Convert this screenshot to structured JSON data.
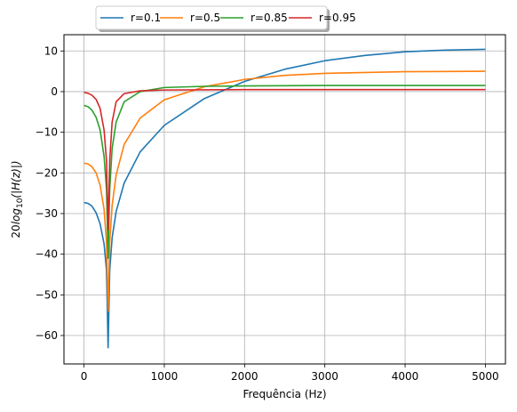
{
  "chart_data": {
    "type": "line",
    "xlabel": "Frequência (Hz)",
    "ylabel_prefix": "20",
    "ylabel_func": "log",
    "ylabel_sub": "10",
    "ylabel_arg": "(|H(z)|)",
    "xlim": [
      -250,
      5250
    ],
    "ylim": [
      -67,
      14
    ],
    "x_ticks": [
      0,
      1000,
      2000,
      3000,
      4000,
      5000
    ],
    "x_tick_labels": [
      "0",
      "1000",
      "2000",
      "3000",
      "4000",
      "5000"
    ],
    "y_ticks": [
      -60,
      -50,
      -40,
      -30,
      -20,
      -10,
      0,
      10
    ],
    "y_tick_labels": [
      "−60",
      "−50",
      "−40",
      "−30",
      "−20",
      "−10",
      "0",
      "10"
    ],
    "grid": true,
    "legend_position": "top-center, above plot",
    "notch_frequency_hz": 300,
    "series": [
      {
        "name": "r=0.1",
        "color": "#1f77b4",
        "points": [
          [
            0,
            -27.3
          ],
          [
            50,
            -27.5
          ],
          [
            100,
            -28.2
          ],
          [
            150,
            -29.8
          ],
          [
            200,
            -32.5
          ],
          [
            250,
            -37.5
          ],
          [
            280,
            -44
          ],
          [
            300,
            -63
          ],
          [
            320,
            -44
          ],
          [
            350,
            -36
          ],
          [
            400,
            -29.5
          ],
          [
            500,
            -22.5
          ],
          [
            700,
            -14.8
          ],
          [
            1000,
            -8.3
          ],
          [
            1500,
            -1.7
          ],
          [
            2000,
            2.5
          ],
          [
            2500,
            5.5
          ],
          [
            3000,
            7.6
          ],
          [
            3500,
            8.9
          ],
          [
            4000,
            9.8
          ],
          [
            4500,
            10.2
          ],
          [
            5000,
            10.4
          ]
        ]
      },
      {
        "name": "r=0.5",
        "color": "#ff7f0e",
        "points": [
          [
            0,
            -17.6
          ],
          [
            50,
            -17.8
          ],
          [
            100,
            -18.5
          ],
          [
            150,
            -20
          ],
          [
            200,
            -23
          ],
          [
            250,
            -29
          ],
          [
            280,
            -37
          ],
          [
            300,
            -54
          ],
          [
            320,
            -37
          ],
          [
            350,
            -28
          ],
          [
            400,
            -20.5
          ],
          [
            500,
            -13
          ],
          [
            700,
            -6.5
          ],
          [
            1000,
            -2
          ],
          [
            1500,
            1.2
          ],
          [
            2000,
            3
          ],
          [
            2500,
            4
          ],
          [
            3000,
            4.5
          ],
          [
            4000,
            4.9
          ],
          [
            5000,
            5.0
          ]
        ]
      },
      {
        "name": "r=0.85",
        "color": "#2ca02c",
        "points": [
          [
            0,
            -3.4
          ],
          [
            50,
            -3.7
          ],
          [
            100,
            -4.6
          ],
          [
            150,
            -6.3
          ],
          [
            200,
            -9.4
          ],
          [
            250,
            -16
          ],
          [
            280,
            -24
          ],
          [
            300,
            -41
          ],
          [
            320,
            -24
          ],
          [
            350,
            -14
          ],
          [
            400,
            -7.5
          ],
          [
            500,
            -2.5
          ],
          [
            700,
            0
          ],
          [
            1000,
            1
          ],
          [
            1500,
            1.3
          ],
          [
            2000,
            1.4
          ],
          [
            3000,
            1.5
          ],
          [
            5000,
            1.5
          ]
        ]
      },
      {
        "name": "r=0.95",
        "color": "#d62728",
        "points": [
          [
            0,
            -0.2
          ],
          [
            50,
            -0.4
          ],
          [
            100,
            -0.9
          ],
          [
            150,
            -1.9
          ],
          [
            200,
            -4.1
          ],
          [
            250,
            -9.5
          ],
          [
            280,
            -17
          ],
          [
            300,
            -34
          ],
          [
            320,
            -17
          ],
          [
            350,
            -7.5
          ],
          [
            400,
            -2.5
          ],
          [
            500,
            -0.5
          ],
          [
            700,
            0.2
          ],
          [
            1000,
            0.4
          ],
          [
            2000,
            0.5
          ],
          [
            5000,
            0.5
          ]
        ]
      }
    ]
  }
}
